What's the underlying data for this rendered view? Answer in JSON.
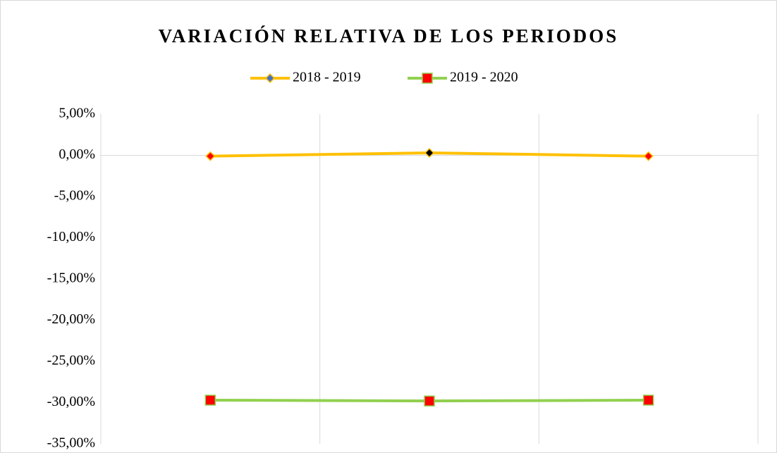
{
  "chart_data": {
    "type": "line",
    "title": "VARIACIÓN RELATIVA DE LOS PERIODOS",
    "categories": [
      null,
      null,
      null
    ],
    "series": [
      {
        "name": "2018 - 2019",
        "color": "#ffc000",
        "marker": "diamond",
        "marker_colors": [
          "#ff0000",
          "#000000",
          "#ff0000"
        ],
        "legend_marker_color": "#4472c4",
        "values": [
          -0.1,
          0.3,
          -0.1
        ]
      },
      {
        "name": "2019 - 2020",
        "color": "#92d050",
        "marker": "square",
        "marker_colors": [
          "#ff0000",
          "#ff0000",
          "#ff0000"
        ],
        "legend_marker_color": "#ff0000",
        "values": [
          -29.7,
          -29.8,
          -29.7
        ]
      }
    ],
    "ylim": [
      -35,
      5
    ],
    "yticks": [
      {
        "value": 5,
        "label": "5,00%"
      },
      {
        "value": 0,
        "label": "0,00%"
      },
      {
        "value": -5,
        "label": "-5,00%"
      },
      {
        "value": -10,
        "label": "-10,00%"
      },
      {
        "value": -15,
        "label": "-15,00%"
      },
      {
        "value": -20,
        "label": "-20,00%"
      },
      {
        "value": -25,
        "label": "-25,00%"
      },
      {
        "value": -30,
        "label": "-30,00%"
      },
      {
        "value": -35,
        "label": "-35,00%"
      }
    ],
    "grid": "vertical",
    "legend": "top"
  }
}
